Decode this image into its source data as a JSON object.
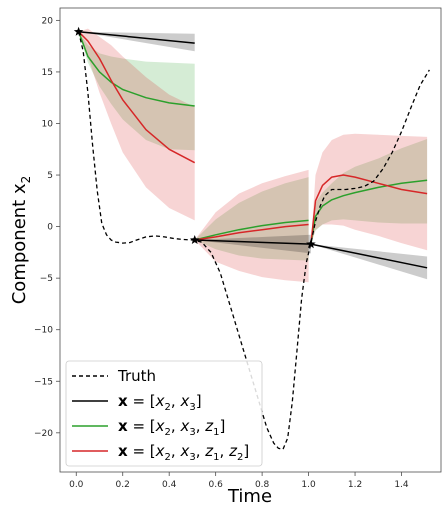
{
  "chart_data": {
    "type": "line",
    "xlabel": "Time",
    "ylabel": "Component x",
    "ylabel_subscript": "2",
    "xlim": [
      -0.07,
      1.57
    ],
    "ylim": [
      -23.8,
      21.2
    ],
    "xticks": [
      0.0,
      0.2,
      0.4,
      0.6,
      0.8,
      1.0,
      1.2,
      1.4
    ],
    "xtick_labels": [
      "0.0",
      "0.2",
      "0.4",
      "0.6",
      "0.8",
      "1.0",
      "1.2",
      "1.4"
    ],
    "yticks": [
      -20,
      -15,
      -10,
      -5,
      0,
      5,
      10,
      15,
      20
    ],
    "ytick_labels": [
      "−20",
      "−15",
      "−10",
      "−5",
      "0",
      "5",
      "10",
      "15",
      "20"
    ],
    "grid": false,
    "legend": {
      "placement": "lower-left",
      "entries": [
        {
          "label": "Truth",
          "color": "#000000",
          "dash": true
        },
        {
          "label": "x = [x2, x3]",
          "color": "#000000",
          "dash": false
        },
        {
          "label": "x = [x2, x3, z1]",
          "color": "#2ca02c",
          "dash": false
        },
        {
          "label": "x = [x2, x3, z1, z2]",
          "color": "#d62728",
          "dash": false
        }
      ]
    },
    "truth": {
      "name": "Truth",
      "color": "#000000",
      "x": [
        0.01,
        0.03,
        0.05,
        0.07,
        0.09,
        0.11,
        0.13,
        0.15,
        0.17,
        0.2,
        0.23,
        0.26,
        0.3,
        0.34,
        0.38,
        0.42,
        0.46,
        0.5,
        0.54,
        0.58,
        0.62,
        0.66,
        0.7,
        0.74,
        0.78,
        0.82,
        0.85,
        0.87,
        0.89,
        0.91,
        0.93,
        0.95,
        0.97,
        0.99,
        1.01,
        1.03,
        1.05,
        1.07,
        1.1,
        1.13,
        1.16,
        1.2,
        1.24,
        1.28,
        1.32,
        1.36,
        1.4,
        1.44,
        1.48,
        1.52
      ],
      "y": [
        18.9,
        17.0,
        13.0,
        8.0,
        3.5,
        0.3,
        -0.8,
        -1.3,
        -1.5,
        -1.6,
        -1.55,
        -1.3,
        -1.0,
        -0.9,
        -1.0,
        -1.15,
        -1.25,
        -1.3,
        -1.5,
        -2.5,
        -4.5,
        -7.5,
        -10.5,
        -13.5,
        -16.5,
        -19.5,
        -21.0,
        -21.5,
        -21.6,
        -20.5,
        -17.0,
        -12.0,
        -7.0,
        -3.5,
        -1.6,
        0.5,
        2.0,
        3.0,
        3.6,
        3.6,
        3.6,
        3.7,
        3.9,
        4.4,
        5.6,
        7.2,
        9.2,
        11.5,
        13.7,
        15.2
      ]
    },
    "anchors": {
      "x": [
        0.01,
        0.51,
        1.01
      ],
      "y": [
        18.9,
        -1.3,
        -1.7
      ]
    },
    "series": [
      {
        "name": "x = [x2, x3]",
        "color": "#000000",
        "fill": "#000000",
        "fill_opacity": 0.2,
        "segments": [
          {
            "x": [
              0.01,
              0.51
            ],
            "y": [
              18.9,
              17.8
            ],
            "lower": [
              18.9,
              17.0
            ],
            "upper": [
              18.9,
              18.7
            ]
          },
          {
            "x": [
              0.51,
              1.01
            ],
            "y": [
              -1.3,
              -1.7
            ],
            "lower": [
              -1.3,
              -2.6
            ],
            "upper": [
              -1.3,
              -0.8
            ]
          },
          {
            "x": [
              1.01,
              1.51
            ],
            "y": [
              -1.7,
              -4.0
            ],
            "lower": [
              -1.7,
              -5.1
            ],
            "upper": [
              -1.7,
              -2.9
            ]
          }
        ]
      },
      {
        "name": "x = [x2, x3, z1]",
        "color": "#2ca02c",
        "fill": "#2ca02c",
        "fill_opacity": 0.2,
        "segments": [
          {
            "x": [
              0.01,
              0.05,
              0.1,
              0.15,
              0.2,
              0.3,
              0.4,
              0.51
            ],
            "y": [
              18.9,
              16.5,
              15.0,
              14.0,
              13.3,
              12.5,
              12.0,
              11.7
            ],
            "lower": [
              18.9,
              15.9,
              13.6,
              11.9,
              10.4,
              8.4,
              7.5,
              7.4
            ],
            "upper": [
              18.9,
              17.6,
              16.8,
              16.5,
              16.3,
              16.0,
              15.9,
              15.8
            ]
          },
          {
            "x": [
              0.51,
              0.6,
              0.7,
              0.8,
              0.9,
              1.0
            ],
            "y": [
              -1.3,
              -0.8,
              -0.3,
              0.1,
              0.4,
              0.6
            ],
            "lower": [
              -1.3,
              -2.2,
              -2.8,
              -3.1,
              -3.2,
              -3.3
            ],
            "upper": [
              -1.3,
              0.7,
              2.3,
              3.4,
              4.2,
              4.8
            ]
          },
          {
            "x": [
              1.01,
              1.03,
              1.06,
              1.1,
              1.15,
              1.2,
              1.3,
              1.4,
              1.51
            ],
            "y": [
              -1.7,
              1.0,
              2.0,
              2.6,
              3.0,
              3.3,
              3.8,
              4.2,
              4.5
            ],
            "lower": [
              -1.7,
              -0.4,
              0.2,
              0.6,
              0.7,
              0.6,
              0.4,
              0.3,
              0.3
            ],
            "upper": [
              -1.7,
              2.3,
              3.3,
              4.2,
              5.2,
              5.8,
              6.6,
              7.6,
              8.5
            ]
          }
        ]
      },
      {
        "name": "x = [x2, x3, z1, z2]",
        "color": "#d62728",
        "fill": "#d62728",
        "fill_opacity": 0.2,
        "segments": [
          {
            "x": [
              0.01,
              0.05,
              0.1,
              0.15,
              0.2,
              0.3,
              0.4,
              0.51
            ],
            "y": [
              18.9,
              18.0,
              16.3,
              14.2,
              12.3,
              9.4,
              7.5,
              6.2
            ],
            "lower": [
              18.9,
              16.5,
              13.0,
              10.0,
              7.2,
              3.8,
              1.8,
              0.6
            ],
            "upper": [
              18.9,
              19.2,
              18.4,
              17.6,
              16.5,
              14.5,
              12.8,
              11.6
            ]
          },
          {
            "x": [
              0.51,
              0.6,
              0.7,
              0.8,
              0.9,
              1.0
            ],
            "y": [
              -1.3,
              -1.0,
              -0.6,
              -0.3,
              0.0,
              0.2
            ],
            "lower": [
              -1.3,
              -3.4,
              -4.3,
              -4.9,
              -5.2,
              -5.4
            ],
            "upper": [
              -1.3,
              1.4,
              3.2,
              4.2,
              4.9,
              5.5
            ]
          },
          {
            "x": [
              1.01,
              1.03,
              1.06,
              1.1,
              1.15,
              1.2,
              1.3,
              1.4,
              1.51
            ],
            "y": [
              -1.7,
              2.5,
              4.0,
              4.8,
              5.0,
              4.8,
              4.2,
              3.6,
              3.2
            ],
            "lower": [
              -1.7,
              -0.3,
              0.2,
              0.2,
              0.1,
              -0.3,
              -0.9,
              -1.6,
              -2.3
            ],
            "upper": [
              -1.7,
              5.0,
              7.2,
              8.4,
              8.9,
              9.0,
              8.9,
              8.8,
              8.7
            ]
          }
        ]
      }
    ]
  }
}
